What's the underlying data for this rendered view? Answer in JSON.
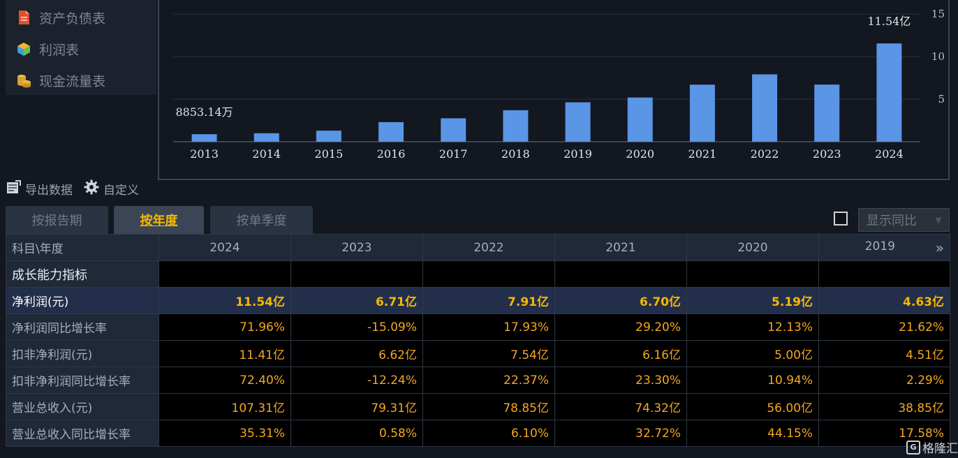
{
  "menu": {
    "items": [
      {
        "label": "资产负债表",
        "icon": "balance-sheet-icon"
      },
      {
        "label": "利润表",
        "icon": "profit-cube-icon"
      },
      {
        "label": "现金流量表",
        "icon": "cash-flow-coins-icon"
      }
    ]
  },
  "chart_data": {
    "type": "bar",
    "categories": [
      "2013",
      "2014",
      "2015",
      "2016",
      "2017",
      "2018",
      "2019",
      "2020",
      "2021",
      "2022",
      "2023",
      "2024"
    ],
    "values": [
      0.885,
      1.0,
      1.3,
      2.3,
      2.75,
      3.7,
      4.63,
      5.19,
      6.7,
      7.91,
      6.71,
      11.54
    ],
    "ylim": [
      0,
      15
    ],
    "yticks": [
      5,
      10,
      15
    ],
    "annotations": [
      {
        "category": "2013",
        "text": "8853.14万"
      },
      {
        "category": "2024",
        "text": "11.54亿"
      }
    ],
    "bar_color": "#5a95e6",
    "grid": true
  },
  "toolbar": {
    "export_label": "导出数据",
    "custom_label": "自定义"
  },
  "tabs": [
    {
      "label": "按报告期",
      "active": false
    },
    {
      "label": "按年度",
      "active": true
    },
    {
      "label": "按单季度",
      "active": false
    }
  ],
  "yoy": {
    "label": "显示同比",
    "checked": false
  },
  "table": {
    "header_first": "科目\\年度",
    "years": [
      "2024",
      "2023",
      "2022",
      "2021",
      "2020",
      "2019"
    ],
    "rows": [
      {
        "label": "成长能力指标",
        "values": [
          "",
          "",
          "",
          "",
          "",
          ""
        ],
        "type": "section"
      },
      {
        "label": "净利润(元)",
        "values": [
          "11.54亿",
          "6.71亿",
          "7.91亿",
          "6.70亿",
          "5.19亿",
          "4.63亿"
        ],
        "type": "highlight"
      },
      {
        "label": "净利润同比增长率",
        "values": [
          "71.96%",
          "-15.09%",
          "17.93%",
          "29.20%",
          "12.13%",
          "21.62%"
        ],
        "type": "normal"
      },
      {
        "label": "扣非净利润(元)",
        "values": [
          "11.41亿",
          "6.62亿",
          "7.54亿",
          "6.16亿",
          "5.00亿",
          "4.51亿"
        ],
        "type": "normal"
      },
      {
        "label": "扣非净利润同比增长率",
        "values": [
          "72.40%",
          "-12.24%",
          "22.37%",
          "23.30%",
          "10.94%",
          "2.29%"
        ],
        "type": "normal"
      },
      {
        "label": "营业总收入(元)",
        "values": [
          "107.31亿",
          "79.31亿",
          "78.85亿",
          "74.32亿",
          "56.00亿",
          "38.85亿"
        ],
        "type": "normal"
      },
      {
        "label": "营业总收入同比增长率",
        "values": [
          "35.31%",
          "0.58%",
          "6.10%",
          "32.72%",
          "44.15%",
          "17.58%"
        ],
        "type": "normal"
      }
    ]
  },
  "watermark": {
    "logo": "G",
    "text": "格隆汇"
  },
  "colors": {
    "accent": "#f5b800",
    "value": "#f5a623",
    "bar": "#5a95e6"
  }
}
